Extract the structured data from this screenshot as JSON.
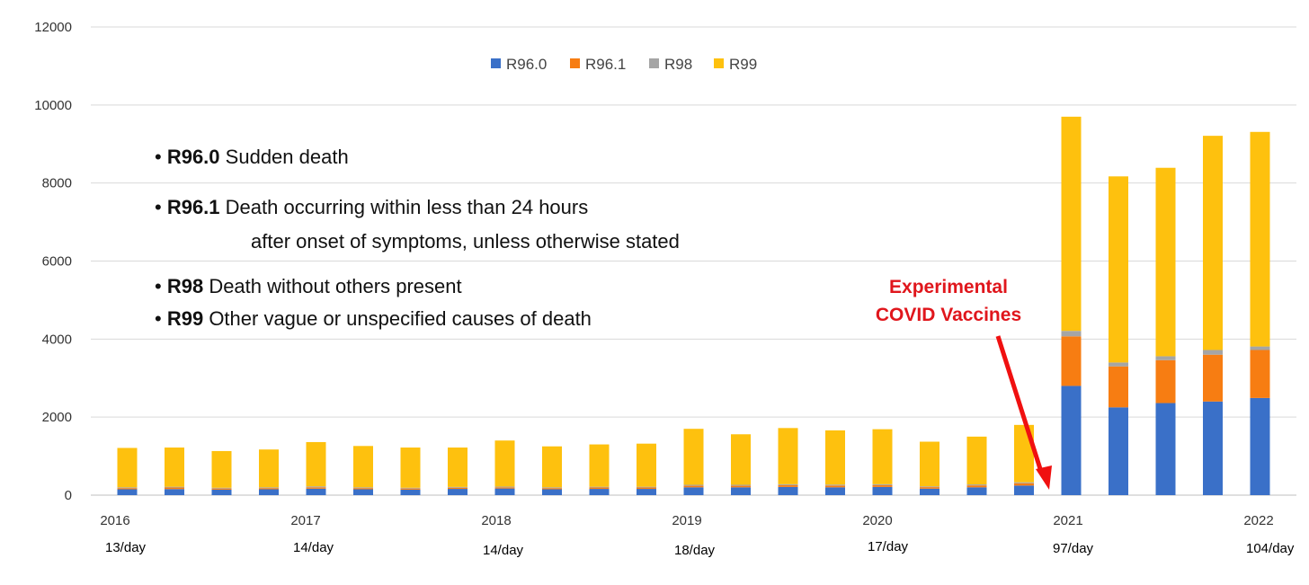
{
  "chart_data": {
    "type": "bar",
    "stacked": true,
    "ylim": [
      0,
      12000
    ],
    "yticks": [
      0,
      2000,
      4000,
      6000,
      8000,
      10000,
      12000
    ],
    "grid": true,
    "legend_position": "top-center",
    "colors": {
      "R96.0": "#3a70c8",
      "R96.1": "#f77d12",
      "R98": "#a5a5a5",
      "R99": "#fec10e"
    },
    "series": [
      {
        "name": "R96.0",
        "values": [
          150,
          155,
          140,
          150,
          165,
          150,
          140,
          160,
          170,
          150,
          160,
          160,
          200,
          200,
          210,
          200,
          210,
          165,
          200,
          245,
          2800,
          2250,
          2360,
          2400,
          2490
        ]
      },
      {
        "name": "R96.1",
        "values": [
          30,
          40,
          30,
          30,
          35,
          30,
          30,
          30,
          30,
          30,
          35,
          35,
          40,
          40,
          45,
          45,
          45,
          40,
          50,
          60,
          1270,
          1050,
          1100,
          1200,
          1230
        ]
      },
      {
        "name": "R98",
        "values": [
          20,
          20,
          20,
          20,
          25,
          20,
          20,
          20,
          20,
          20,
          20,
          20,
          25,
          25,
          25,
          25,
          25,
          20,
          25,
          25,
          140,
          100,
          100,
          120,
          90
        ]
      },
      {
        "name": "R99",
        "values": [
          1010,
          1005,
          940,
          970,
          1135,
          1060,
          1030,
          1010,
          1180,
          1050,
          1085,
          1105,
          1435,
          1295,
          1440,
          1390,
          1410,
          1145,
          1225,
          1470,
          5490,
          4770,
          4830,
          5490,
          5500
        ]
      }
    ],
    "x_year_labels": [
      "2016",
      "2017",
      "2018",
      "2019",
      "2020",
      "2021",
      "2022"
    ],
    "per_day_labels": [
      "13/day",
      "14/day",
      "14/day",
      "18/day",
      "17/day",
      "97/day",
      "104/day"
    ],
    "definitions": [
      {
        "code": "R96.0",
        "text": "Sudden death"
      },
      {
        "code": "R96.1",
        "text": "Death occurring within less than 24 hours",
        "cont": "after onset of symptoms, unless otherwise stated"
      },
      {
        "code": "R98",
        "text": "Death without others present"
      },
      {
        "code": "R99",
        "text": "Other vague or unspecified causes of death"
      }
    ],
    "annotation": {
      "line1": "Experimental",
      "line2": "COVID Vaccines",
      "color": "#e0161c"
    }
  }
}
